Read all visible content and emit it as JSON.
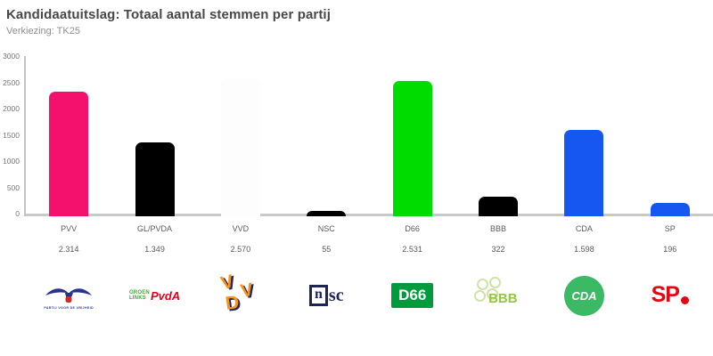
{
  "header": {
    "title": "Kandidaatuitslag: Totaal aantal stemmen per partij",
    "subtitle": "Verkiezing: TK25"
  },
  "chart_data": {
    "type": "bar",
    "title": "Kandidaatuitslag: Totaal aantal stemmen per partij",
    "subtitle": "Verkiezing: TK25",
    "categories": [
      "PVV",
      "GL/PVDA",
      "VVD",
      "NSC",
      "D66",
      "BBB",
      "CDA",
      "SP"
    ],
    "values": [
      2314,
      1349,
      2570,
      55,
      2531,
      322,
      1598,
      196
    ],
    "value_labels": [
      "2.314",
      "1.349",
      "2.570",
      "55",
      "2.531",
      "322",
      "1.598",
      "196"
    ],
    "bar_colors": [
      "#f4116d",
      "#000000",
      "#fdfdfd",
      "#000000",
      "#00dc00",
      "#000000",
      "#1557f0",
      "#1557f0"
    ],
    "xlabel": "",
    "ylabel": "",
    "ylim": [
      0,
      3000
    ],
    "yticks": [
      0,
      500,
      1000,
      1500,
      2000,
      2500,
      3000
    ],
    "ytick_labels": [
      "0",
      "500",
      "1000",
      "1500",
      "2000",
      "2500",
      "3000"
    ],
    "grid": false,
    "legend": false,
    "axis_color": "#c9c9c9"
  },
  "logos": {
    "pvv": {
      "caption": "PARTIJ VOOR DE VRIJHEID",
      "bird_color": "#27348b",
      "shield_color": "#d62828"
    },
    "glpvda": {
      "line1": "GROEN",
      "line2": "LINKS",
      "pvda": "PvdA",
      "green": "#39a935",
      "red": "#e3001b"
    },
    "vvd": {
      "letters": [
        "V",
        "V",
        "D"
      ],
      "orange": "#f7941e",
      "navy": "#232a60"
    },
    "nsc": {
      "n": "n",
      "sc": "sc",
      "color": "#1d2557"
    },
    "d66": {
      "text": "D66",
      "bg": "#009b3d",
      "fg": "#ffffff"
    },
    "bbb": {
      "text": "BBB",
      "green": "#94c83d",
      "pale_green": "#cfe3a6"
    },
    "cda": {
      "text": "CDA",
      "bg": "#3cb964",
      "fg": "#ffffff"
    },
    "sp": {
      "text": "SP",
      "red": "#e30613"
    }
  }
}
